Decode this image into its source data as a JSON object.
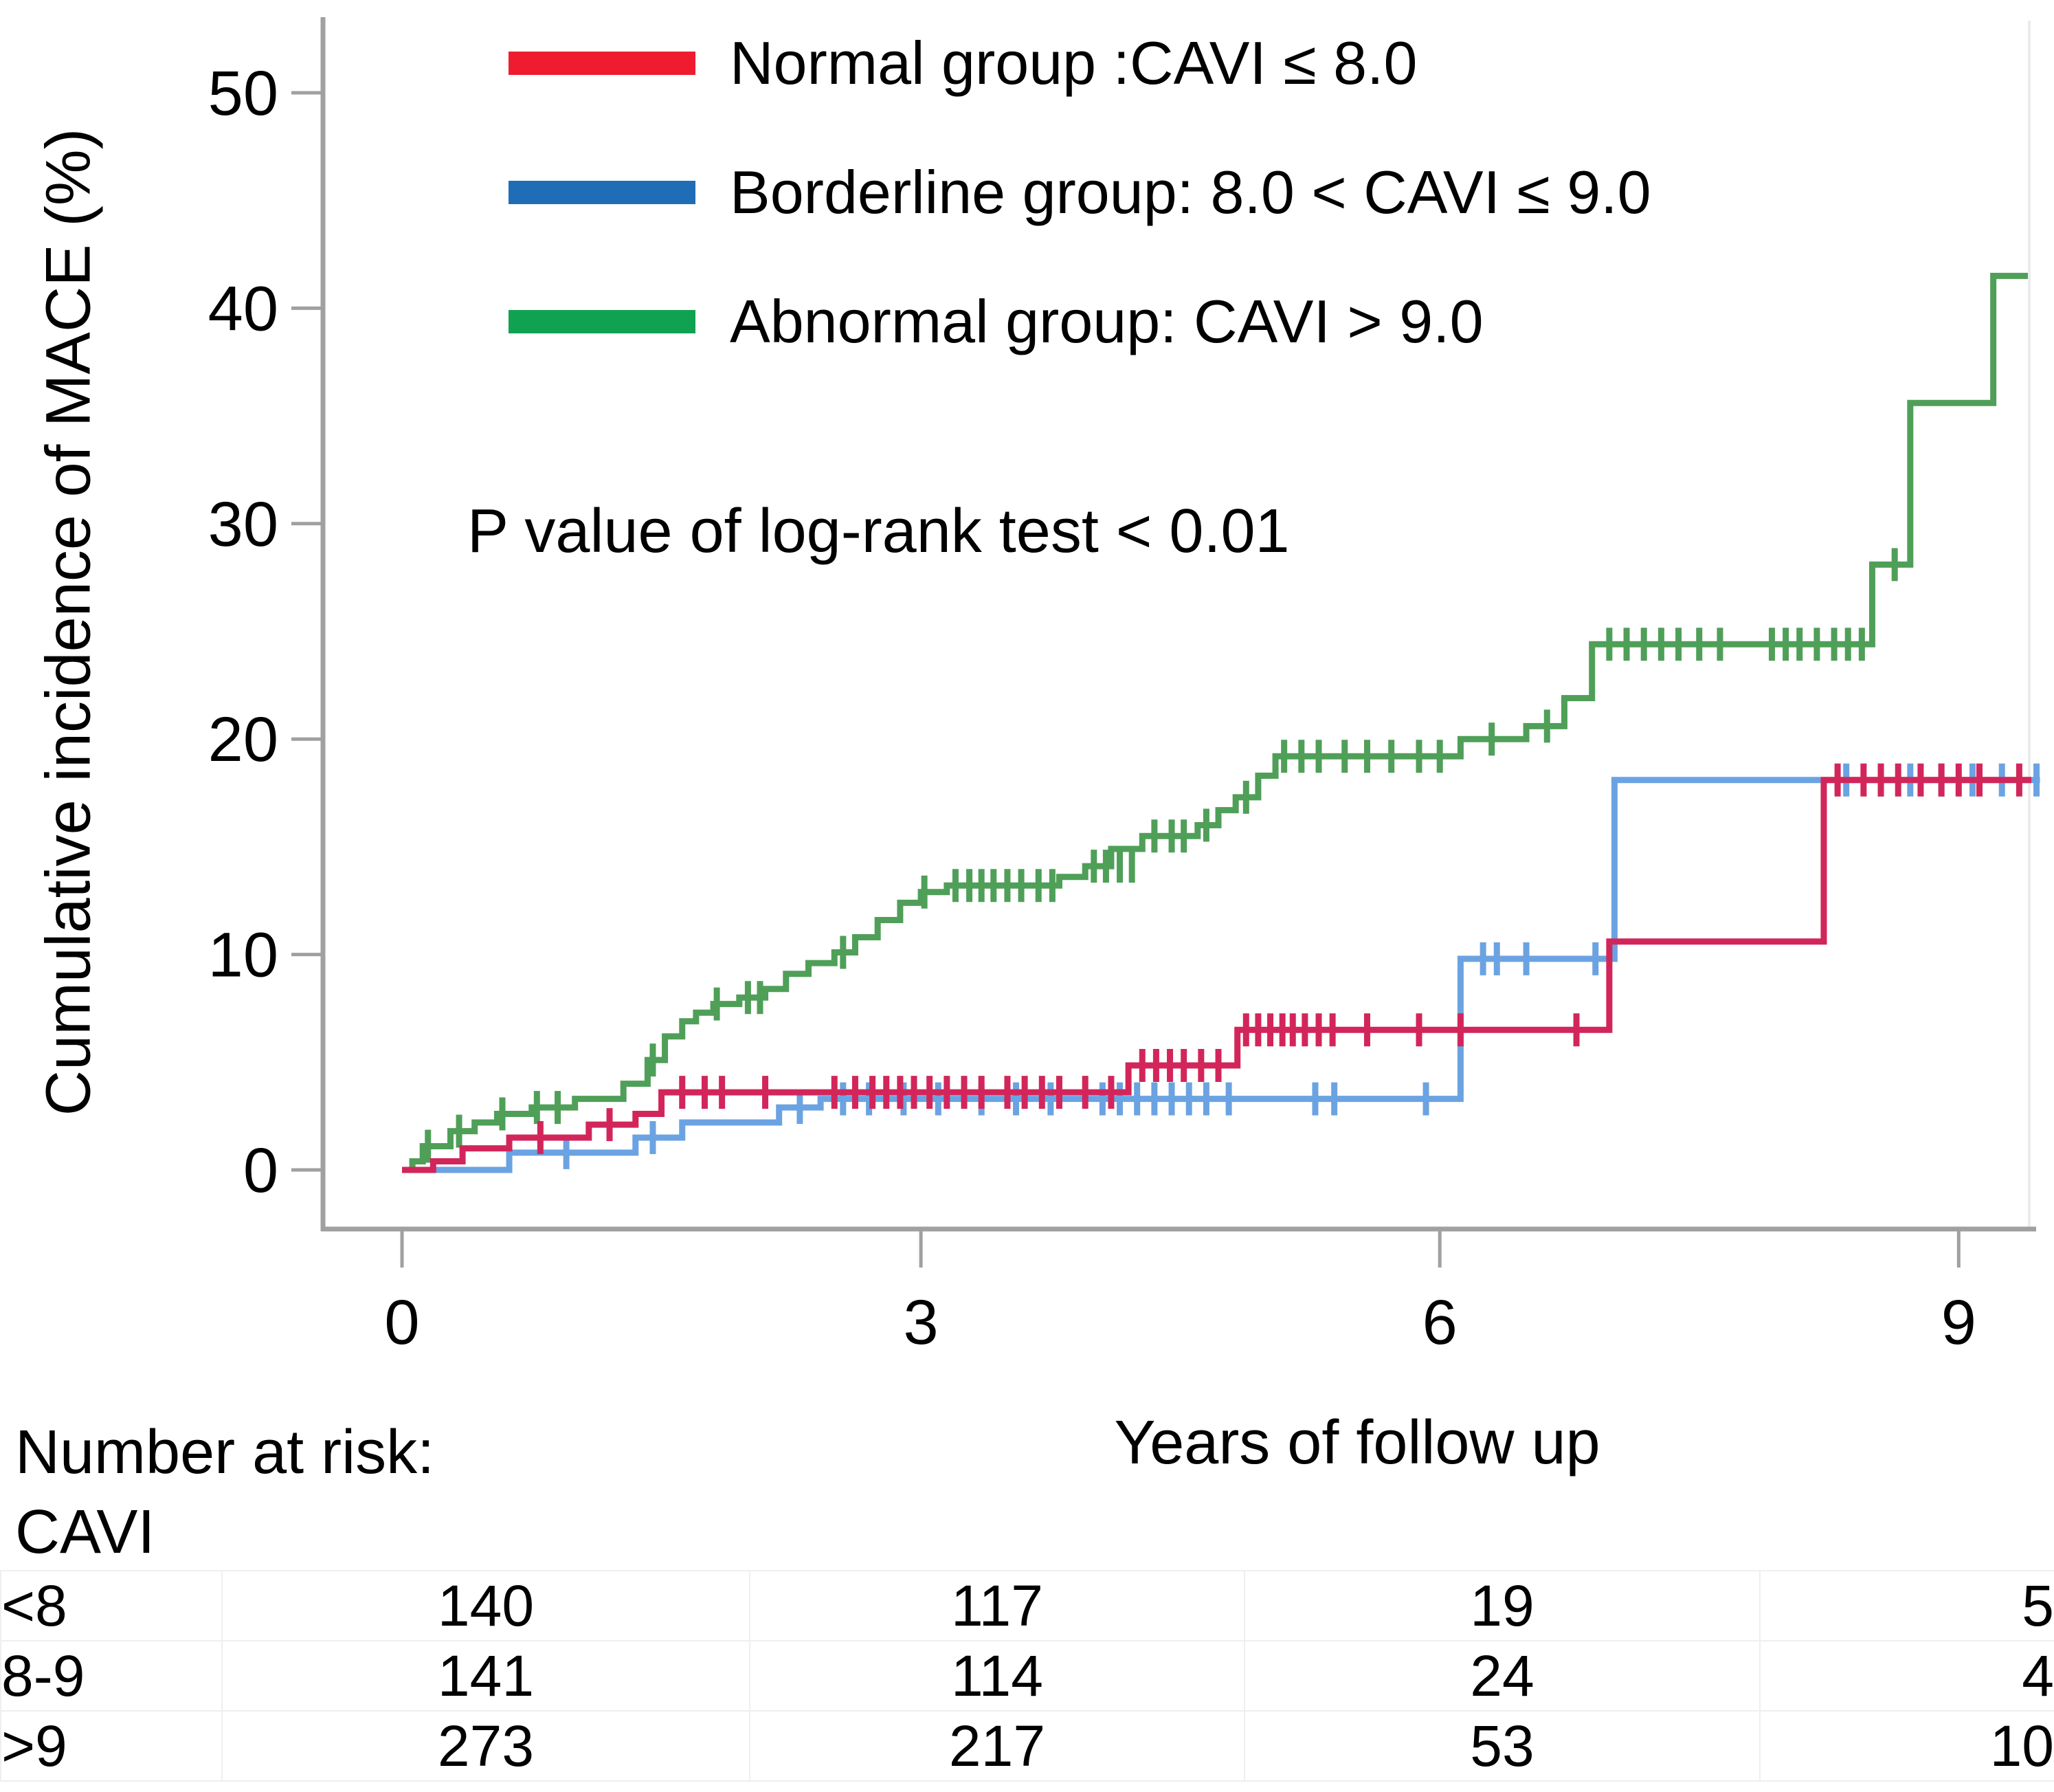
{
  "figure": {
    "ylabel": "Cumulative incidence of MACE (%)",
    "xlabel": "Years of follow up",
    "pvalue_note": "P value of log-rank test < 0.01"
  },
  "legend": [
    {
      "label": "Normal group :CAVI ≤ 8.0",
      "color": "#ee1c2e"
    },
    {
      "label": "Borderline group: 8.0 < CAVI ≤ 9.0",
      "color": "#1e6db6"
    },
    {
      "label": "Abnormal group: CAVI > 9.0",
      "color": "#10a251"
    }
  ],
  "chart_data": {
    "type": "line",
    "subtype": "kaplan-meier-cumulative-incidence-steps",
    "title": "",
    "xlabel": "Years of follow up",
    "ylabel": "Cumulative incidence of MACE (%)",
    "xlim": [
      0,
      9.55
    ],
    "ylim": [
      0,
      52
    ],
    "xticks": [
      0,
      3,
      6,
      9
    ],
    "yticks": [
      0,
      10,
      20,
      30,
      40,
      50
    ],
    "grid": false,
    "legend_position": "top-left",
    "annotation": "P value of log-rank test < 0.01",
    "series": [
      {
        "name": "Abnormal group: CAVI > 9.0",
        "color": "#4f9f58",
        "steps": [
          [
            0,
            0
          ],
          [
            0.06,
            0.4
          ],
          [
            0.12,
            1.1
          ],
          [
            0.28,
            1.8
          ],
          [
            0.42,
            2.2
          ],
          [
            0.55,
            2.6
          ],
          [
            0.75,
            2.9
          ],
          [
            1.0,
            3.3
          ],
          [
            1.28,
            4.0
          ],
          [
            1.42,
            5.1
          ],
          [
            1.52,
            6.2
          ],
          [
            1.62,
            6.9
          ],
          [
            1.7,
            7.3
          ],
          [
            1.8,
            7.7
          ],
          [
            1.95,
            8.0
          ],
          [
            2.1,
            8.4
          ],
          [
            2.22,
            9.1
          ],
          [
            2.35,
            9.6
          ],
          [
            2.5,
            10.1
          ],
          [
            2.62,
            10.8
          ],
          [
            2.75,
            11.6
          ],
          [
            2.88,
            12.4
          ],
          [
            3.0,
            12.9
          ],
          [
            3.15,
            13.2
          ],
          [
            3.8,
            13.6
          ],
          [
            3.95,
            14.1
          ],
          [
            4.1,
            14.9
          ],
          [
            4.28,
            15.5
          ],
          [
            4.6,
            16.0
          ],
          [
            4.72,
            16.7
          ],
          [
            4.82,
            17.3
          ],
          [
            4.95,
            18.3
          ],
          [
            5.05,
            19.2
          ],
          [
            6.12,
            20.0
          ],
          [
            6.5,
            20.6
          ],
          [
            6.72,
            21.9
          ],
          [
            6.88,
            24.4
          ],
          [
            8.5,
            28.1
          ],
          [
            8.72,
            35.6
          ],
          [
            9.2,
            41.5
          ],
          [
            9.4,
            41.5
          ]
        ],
        "censor_marks": [
          [
            0.15,
            1.1
          ],
          [
            0.33,
            1.8
          ],
          [
            0.58,
            2.6
          ],
          [
            0.78,
            2.9
          ],
          [
            0.9,
            2.9
          ],
          [
            1.45,
            5.1
          ],
          [
            1.82,
            7.7
          ],
          [
            2.0,
            8.0
          ],
          [
            2.07,
            8.0
          ],
          [
            2.55,
            10.1
          ],
          [
            3.02,
            12.9
          ],
          [
            3.2,
            13.2
          ],
          [
            3.28,
            13.2
          ],
          [
            3.35,
            13.2
          ],
          [
            3.42,
            13.2
          ],
          [
            3.5,
            13.2
          ],
          [
            3.58,
            13.2
          ],
          [
            3.68,
            13.2
          ],
          [
            3.76,
            13.2
          ],
          [
            4.0,
            14.1
          ],
          [
            4.07,
            14.1
          ],
          [
            4.15,
            14.1
          ],
          [
            4.22,
            14.1
          ],
          [
            4.35,
            15.5
          ],
          [
            4.45,
            15.5
          ],
          [
            4.52,
            15.5
          ],
          [
            4.65,
            16.0
          ],
          [
            4.88,
            17.3
          ],
          [
            5.1,
            19.2
          ],
          [
            5.2,
            19.2
          ],
          [
            5.3,
            19.2
          ],
          [
            5.45,
            19.2
          ],
          [
            5.58,
            19.2
          ],
          [
            5.72,
            19.2
          ],
          [
            5.88,
            19.2
          ],
          [
            6.0,
            19.2
          ],
          [
            6.3,
            20.0
          ],
          [
            6.62,
            20.6
          ],
          [
            6.98,
            24.4
          ],
          [
            7.08,
            24.4
          ],
          [
            7.18,
            24.4
          ],
          [
            7.28,
            24.4
          ],
          [
            7.38,
            24.4
          ],
          [
            7.5,
            24.4
          ],
          [
            7.62,
            24.4
          ],
          [
            7.92,
            24.4
          ],
          [
            8.0,
            24.4
          ],
          [
            8.08,
            24.4
          ],
          [
            8.18,
            24.4
          ],
          [
            8.28,
            24.4
          ],
          [
            8.36,
            24.4
          ],
          [
            8.44,
            24.4
          ],
          [
            8.63,
            28.1
          ]
        ]
      },
      {
        "name": "Borderline group: 8.0 < CAVI ≤ 9.0",
        "color": "#6ba3e2",
        "steps": [
          [
            0,
            0
          ],
          [
            0.62,
            0.8
          ],
          [
            1.35,
            1.5
          ],
          [
            1.62,
            2.2
          ],
          [
            2.18,
            2.9
          ],
          [
            2.42,
            3.3
          ],
          [
            6.12,
            9.8
          ],
          [
            7.01,
            18.1
          ],
          [
            9.47,
            18.1
          ]
        ],
        "censor_marks": [
          [
            0.95,
            0.8
          ],
          [
            1.45,
            1.5
          ],
          [
            2.3,
            2.9
          ],
          [
            2.55,
            3.3
          ],
          [
            2.7,
            3.3
          ],
          [
            2.9,
            3.3
          ],
          [
            3.1,
            3.3
          ],
          [
            3.35,
            3.3
          ],
          [
            3.55,
            3.3
          ],
          [
            3.75,
            3.3
          ],
          [
            4.05,
            3.3
          ],
          [
            4.15,
            3.3
          ],
          [
            4.25,
            3.3
          ],
          [
            4.35,
            3.3
          ],
          [
            4.45,
            3.3
          ],
          [
            4.55,
            3.3
          ],
          [
            4.65,
            3.3
          ],
          [
            4.78,
            3.3
          ],
          [
            5.28,
            3.3
          ],
          [
            5.39,
            3.3
          ],
          [
            5.92,
            3.3
          ],
          [
            6.25,
            9.8
          ],
          [
            6.33,
            9.8
          ],
          [
            6.5,
            9.8
          ],
          [
            6.9,
            9.8
          ],
          [
            8.35,
            18.1
          ],
          [
            8.55,
            18.1
          ],
          [
            8.72,
            18.1
          ],
          [
            8.9,
            18.1
          ],
          [
            9.08,
            18.1
          ],
          [
            9.25,
            18.1
          ],
          [
            9.45,
            18.1
          ]
        ]
      },
      {
        "name": "Normal group: CAVI ≤ 8.0",
        "color": "#d2265b",
        "steps": [
          [
            0,
            0
          ],
          [
            0.18,
            0.4
          ],
          [
            0.35,
            1.0
          ],
          [
            0.62,
            1.5
          ],
          [
            1.08,
            2.1
          ],
          [
            1.35,
            2.6
          ],
          [
            1.5,
            3.6
          ],
          [
            4.2,
            4.85
          ],
          [
            4.83,
            6.5
          ],
          [
            6.98,
            10.6
          ],
          [
            8.22,
            18.1
          ],
          [
            9.42,
            18.1
          ]
        ],
        "censor_marks": [
          [
            0.8,
            1.5
          ],
          [
            1.2,
            2.1
          ],
          [
            1.62,
            3.6
          ],
          [
            1.75,
            3.6
          ],
          [
            1.85,
            3.6
          ],
          [
            2.1,
            3.6
          ],
          [
            2.5,
            3.6
          ],
          [
            2.62,
            3.6
          ],
          [
            2.72,
            3.6
          ],
          [
            2.8,
            3.6
          ],
          [
            2.88,
            3.6
          ],
          [
            2.96,
            3.6
          ],
          [
            3.05,
            3.6
          ],
          [
            3.15,
            3.6
          ],
          [
            3.25,
            3.6
          ],
          [
            3.35,
            3.6
          ],
          [
            3.5,
            3.6
          ],
          [
            3.6,
            3.6
          ],
          [
            3.7,
            3.6
          ],
          [
            3.8,
            3.6
          ],
          [
            3.95,
            3.6
          ],
          [
            4.1,
            3.6
          ],
          [
            4.28,
            4.85
          ],
          [
            4.36,
            4.85
          ],
          [
            4.44,
            4.85
          ],
          [
            4.52,
            4.85
          ],
          [
            4.62,
            4.85
          ],
          [
            4.72,
            4.85
          ],
          [
            4.88,
            6.5
          ],
          [
            4.95,
            6.5
          ],
          [
            5.02,
            6.5
          ],
          [
            5.09,
            6.5
          ],
          [
            5.15,
            6.5
          ],
          [
            5.22,
            6.5
          ],
          [
            5.3,
            6.5
          ],
          [
            5.38,
            6.5
          ],
          [
            5.58,
            6.5
          ],
          [
            5.88,
            6.5
          ],
          [
            6.12,
            6.5
          ],
          [
            6.79,
            6.5
          ],
          [
            8.3,
            18.1
          ],
          [
            8.45,
            18.1
          ],
          [
            8.55,
            18.1
          ],
          [
            8.65,
            18.1
          ],
          [
            8.78,
            18.1
          ],
          [
            8.9,
            18.1
          ],
          [
            9.0,
            18.1
          ],
          [
            9.12,
            18.1
          ],
          [
            9.35,
            18.1
          ]
        ]
      }
    ]
  },
  "risk_table": {
    "title": "Number at risk:",
    "subtitle": "CAVI",
    "time_points": [
      0,
      3,
      6,
      9
    ],
    "rows": [
      {
        "label": "<8",
        "values": [
          "140",
          "117",
          "19",
          "5"
        ]
      },
      {
        "label": "8-9",
        "values": [
          "141",
          "114",
          "24",
          "4"
        ]
      },
      {
        "label": ">9",
        "values": [
          "273",
          "217",
          "53",
          "10"
        ]
      }
    ]
  }
}
